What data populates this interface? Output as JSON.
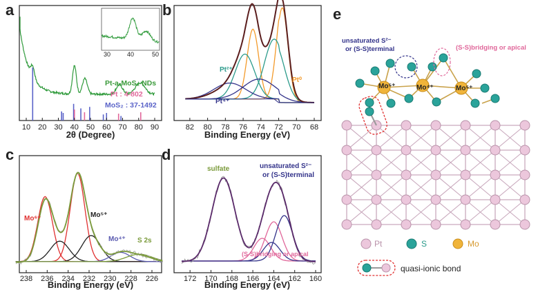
{
  "panels": {
    "a": {
      "letter": "a",
      "xlabel": "2θ (Degree)",
      "ticks": [
        "10",
        "20",
        "30",
        "40",
        "50",
        "60",
        "70",
        "80",
        "90"
      ],
      "legend": [
        "Pt-a-MoS₂ NDs",
        "Pt : 4-802",
        "MoS₂ : 37-1492"
      ],
      "inset_ticks": [
        "30",
        "40",
        "50"
      ]
    },
    "b": {
      "letter": "b",
      "xlabel": "Binding Energy (eV)",
      "ticks": [
        "82",
        "80",
        "78",
        "76",
        "74",
        "72",
        "70",
        "68"
      ],
      "labels": {
        "pt2": "Pt²⁺",
        "pt0": "Pt⁰",
        "pt4": "Pt⁴⁺"
      }
    },
    "c": {
      "letter": "c",
      "xlabel": "Binding Energy (eV)",
      "ticks": [
        "238",
        "236",
        "234",
        "232",
        "230",
        "228",
        "226"
      ],
      "labels": {
        "mo6": "Mo⁶⁺",
        "mo5": "Mo⁵⁺",
        "mo4": "Mo⁴⁺",
        "s2s": "S 2s"
      }
    },
    "d": {
      "letter": "d",
      "xlabel": "Binding Energy (eV)",
      "ticks": [
        "172",
        "170",
        "168",
        "166",
        "164",
        "162",
        "160"
      ],
      "labels": {
        "sulfate": "sulfate",
        "unsat1": "unsaturated S²⁻",
        "unsat2": "or (S-S)terminal",
        "bridging": "(S-S)bridging or apical"
      }
    },
    "e": {
      "letter": "e",
      "unsat1": "unsaturated S²⁻",
      "unsat2": "or (S-S)terminal",
      "ss_bridging": "(S-S)bridging or apical",
      "mo_a": "Mo⁵⁺",
      "mo_b": "Mo⁴⁺",
      "mo_c": "Mo⁵⁺",
      "legend_pt": "Pt",
      "legend_s": "S",
      "legend_mo": "Mo",
      "quasi": "quasi-ionic bond"
    }
  },
  "colors": {
    "green": "#3a9a3a",
    "pt_pink": "#e0679a",
    "mos2_blue": "#5a63c8",
    "dark": "#5a1d1d",
    "orange": "#f39a2a",
    "teal": "#2a9a8a",
    "navy": "#33338a",
    "red": "#e03030",
    "black": "#222222",
    "olive": "#7a9a3a"
  }
}
